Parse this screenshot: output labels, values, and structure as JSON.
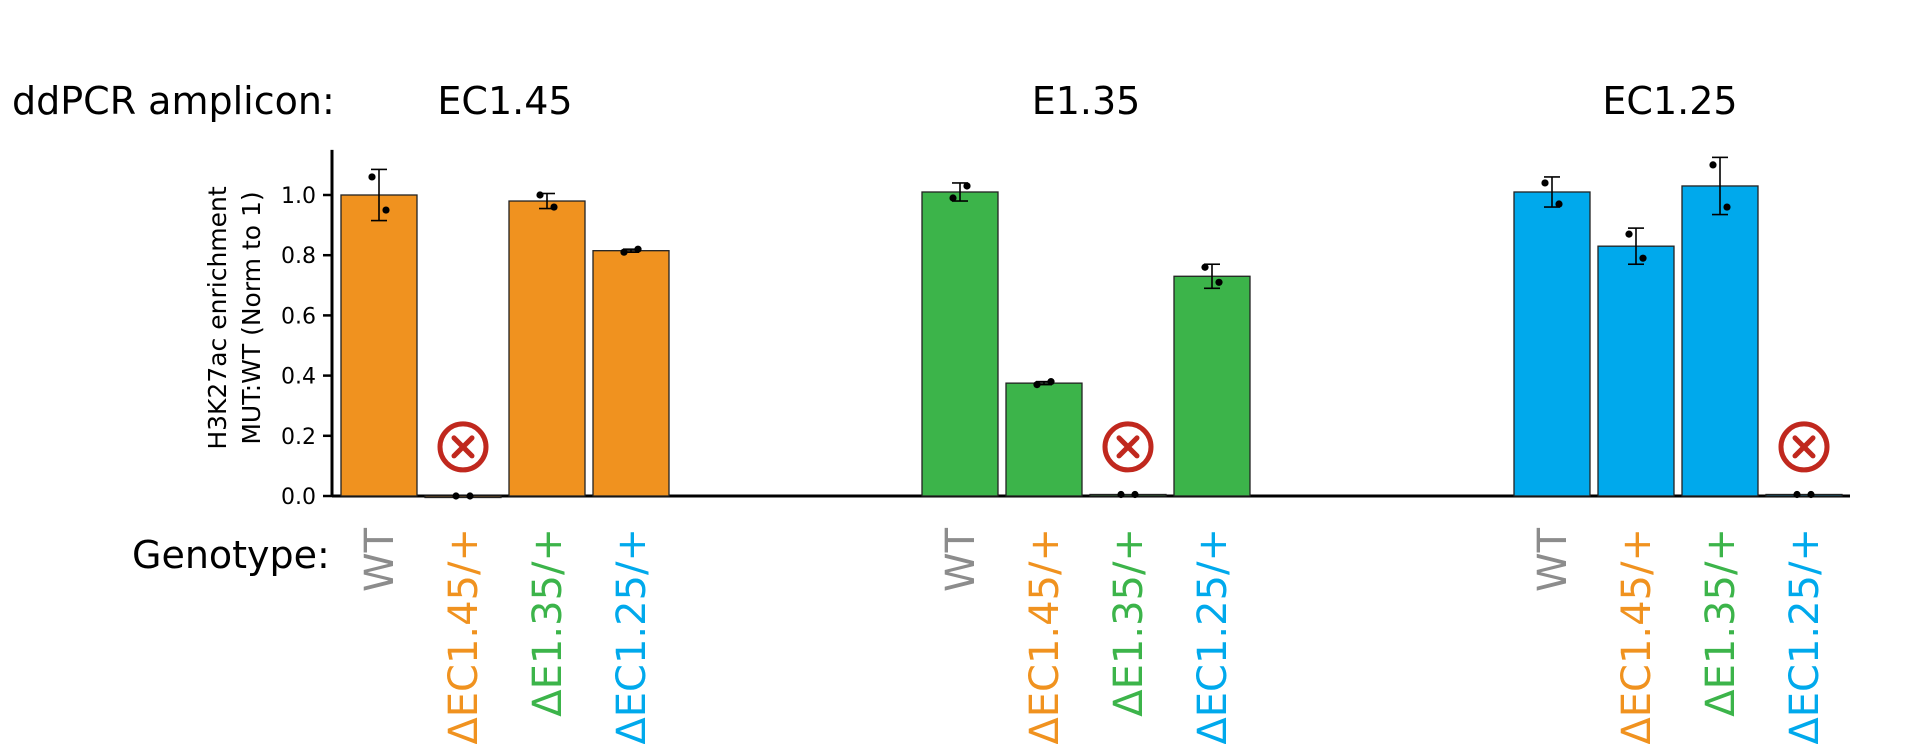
{
  "chart_data": {
    "type": "bar",
    "amplicon_label": "ddPCR amplicon:",
    "genotype_label": "Genotype:",
    "ylabel_line1": "H3K27ac enrichment",
    "ylabel_line2": "MUT:WT  (Norm to 1)",
    "ylim": [
      0,
      1.15
    ],
    "yticks": [
      "0.0",
      "0.2",
      "0.4",
      "0.6",
      "0.8",
      "1.0"
    ],
    "genotypes": [
      {
        "label": "WT",
        "color": "#8c8c8c"
      },
      {
        "label": "ΔEC1.45/+",
        "color": "#f0921f"
      },
      {
        "label": "ΔE1.35/+",
        "color": "#3cb44a"
      },
      {
        "label": "ΔEC1.25/+",
        "color": "#00a9ec"
      }
    ],
    "groups": [
      {
        "amplicon": "EC1.45",
        "color": "#f0921f",
        "values": [
          1.0,
          0.0,
          0.98,
          0.815
        ],
        "err": [
          0.085,
          0,
          0.025,
          0.005
        ],
        "points": [
          [
            1.06,
            0.95
          ],
          [
            0,
            0
          ],
          [
            1.0,
            0.96
          ],
          [
            0.81,
            0.82
          ]
        ],
        "deleted": [
          false,
          true,
          false,
          false
        ]
      },
      {
        "amplicon": "E1.35",
        "color": "#3cb44a",
        "values": [
          1.01,
          0.375,
          0.005,
          0.73
        ],
        "err": [
          0.03,
          0.005,
          0,
          0.04
        ],
        "points": [
          [
            0.99,
            1.03
          ],
          [
            0.37,
            0.38
          ],
          [
            0.005,
            0.005
          ],
          [
            0.76,
            0.71
          ]
        ],
        "deleted": [
          false,
          false,
          true,
          false
        ]
      },
      {
        "amplicon": "EC1.25",
        "color": "#00a9ec",
        "values": [
          1.01,
          0.83,
          1.03,
          0.005
        ],
        "err": [
          0.05,
          0.06,
          0.095,
          0
        ],
        "points": [
          [
            1.04,
            0.97
          ],
          [
            0.87,
            0.79
          ],
          [
            1.1,
            0.96
          ],
          [
            0.005,
            0.005
          ]
        ],
        "deleted": [
          false,
          false,
          false,
          true
        ]
      }
    ],
    "deleted_marker_color": "#c0281e"
  }
}
